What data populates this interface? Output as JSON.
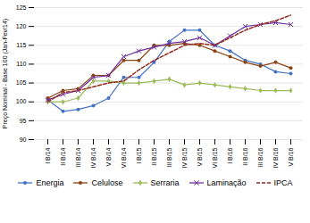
{
  "chart_data": {
    "type": "line",
    "ylabel": "Preço Nominal - Base 100 (Jan-Fev/14)",
    "categories": [
      "I B/14",
      "II B/14",
      "III B/14",
      "IV B/14",
      "V B/14",
      "VI B/14",
      "I B/15",
      "II B/15",
      "III B/15",
      "IV B/15",
      "V B/15",
      "VI B/15",
      "I B/16",
      "II B/16",
      "III B/16",
      "IV B/16",
      "V B/16"
    ],
    "series": [
      {
        "name": "Energia",
        "color": "#4472c4",
        "marker": "circle",
        "line_style": "solid",
        "values": [
          100.5,
          97.5,
          98.0,
          99.0,
          101.0,
          106.5,
          106.5,
          110.5,
          116.0,
          119.0,
          119.0,
          115.0,
          113.5,
          111.0,
          110.0,
          108.0,
          107.5
        ]
      },
      {
        "name": "Celulose",
        "color": "#8B4513",
        "marker": "circle",
        "line_style": "solid",
        "values": [
          101.0,
          103.0,
          103.5,
          107.0,
          107.0,
          111.0,
          111.0,
          115.0,
          115.0,
          115.5,
          115.0,
          113.5,
          112.0,
          110.5,
          109.5,
          110.5,
          109.0
        ]
      },
      {
        "name": "Serraria",
        "color": "#9BBB59",
        "marker": "diamond",
        "line_style": "solid",
        "values": [
          100.0,
          100.0,
          101.0,
          105.5,
          105.5,
          105.0,
          105.0,
          105.5,
          106.0,
          104.5,
          105.0,
          104.5,
          104.0,
          103.5,
          103.0,
          103.0,
          103.0
        ]
      },
      {
        "name": "Laminação",
        "color": "#7030A0",
        "marker": "times",
        "line_style": "solid",
        "values": [
          100.5,
          102.0,
          103.0,
          106.5,
          107.0,
          112.0,
          113.5,
          114.5,
          115.5,
          116.0,
          117.0,
          115.0,
          117.5,
          120.0,
          120.5,
          121.0,
          120.5
        ]
      },
      {
        "name": "IPCA",
        "color": "#922B21",
        "line_style": "dashed",
        "values": [
          100.0,
          102.5,
          103.0,
          104.0,
          105.0,
          105.5,
          108.5,
          111.0,
          113.0,
          115.0,
          115.5,
          115.0,
          117.0,
          119.0,
          120.5,
          121.5,
          123.0
        ]
      }
    ],
    "ylim": [
      90,
      125
    ],
    "yticks": [
      90,
      95,
      100,
      105,
      110,
      115,
      120,
      125
    ],
    "grid": true,
    "legend": "bottom"
  }
}
